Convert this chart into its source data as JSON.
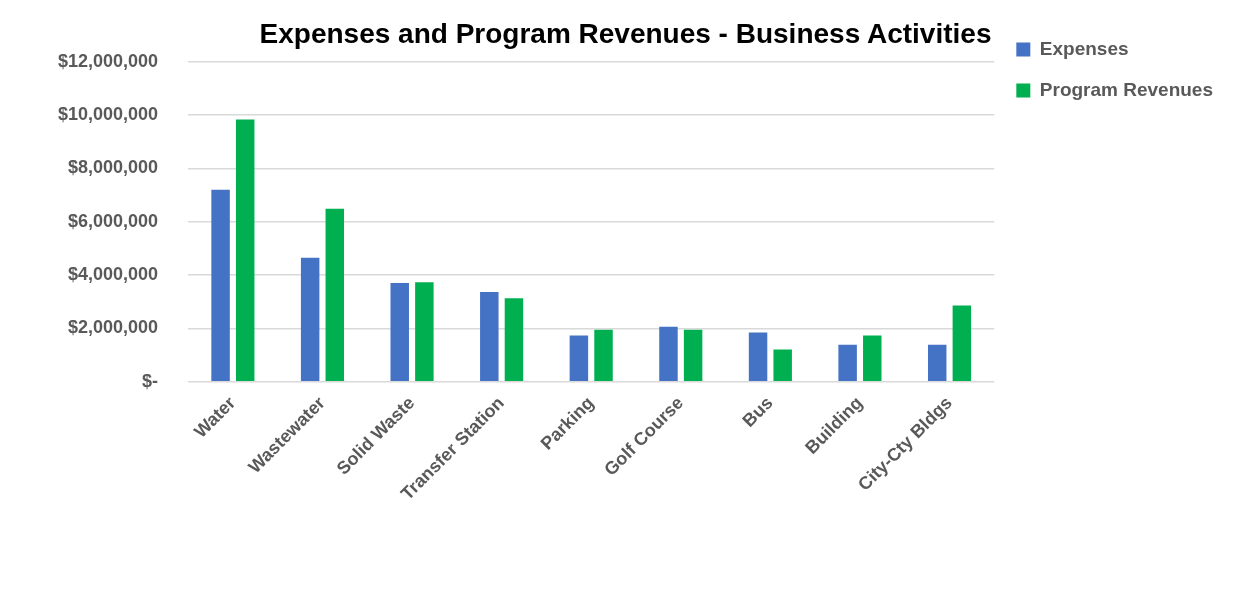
{
  "chart_data": {
    "type": "bar",
    "title": "Expenses and Program Revenues - Business Activities",
    "categories": [
      "Water",
      "Wastewater",
      "Solid Waste",
      "Transfer Station",
      "Parking",
      "Golf Course",
      "Bus",
      "Building",
      "City-Cty Bldgs"
    ],
    "series": [
      {
        "name": "Expenses",
        "color": "#4472c4",
        "values": [
          7200000,
          4650000,
          3700000,
          3370000,
          1740000,
          2060000,
          1850000,
          1390000,
          1390000
        ]
      },
      {
        "name": "Program Revenues",
        "color": "#00b050",
        "values": [
          9830000,
          6490000,
          3730000,
          3130000,
          1950000,
          1950000,
          1210000,
          1740000,
          2860000
        ]
      }
    ],
    "ylim": [
      0,
      12000000
    ],
    "yticks": [
      {
        "value": 0,
        "label": "$-"
      },
      {
        "value": 2000000,
        "label": "$2,000,000"
      },
      {
        "value": 4000000,
        "label": "$4,000,000"
      },
      {
        "value": 6000000,
        "label": "$6,000,000"
      },
      {
        "value": 8000000,
        "label": "$8,000,000"
      },
      {
        "value": 10000000,
        "label": "$10,000,000"
      },
      {
        "value": 12000000,
        "label": "$12,000,000"
      }
    ],
    "grid": "y",
    "legend": "top right"
  }
}
